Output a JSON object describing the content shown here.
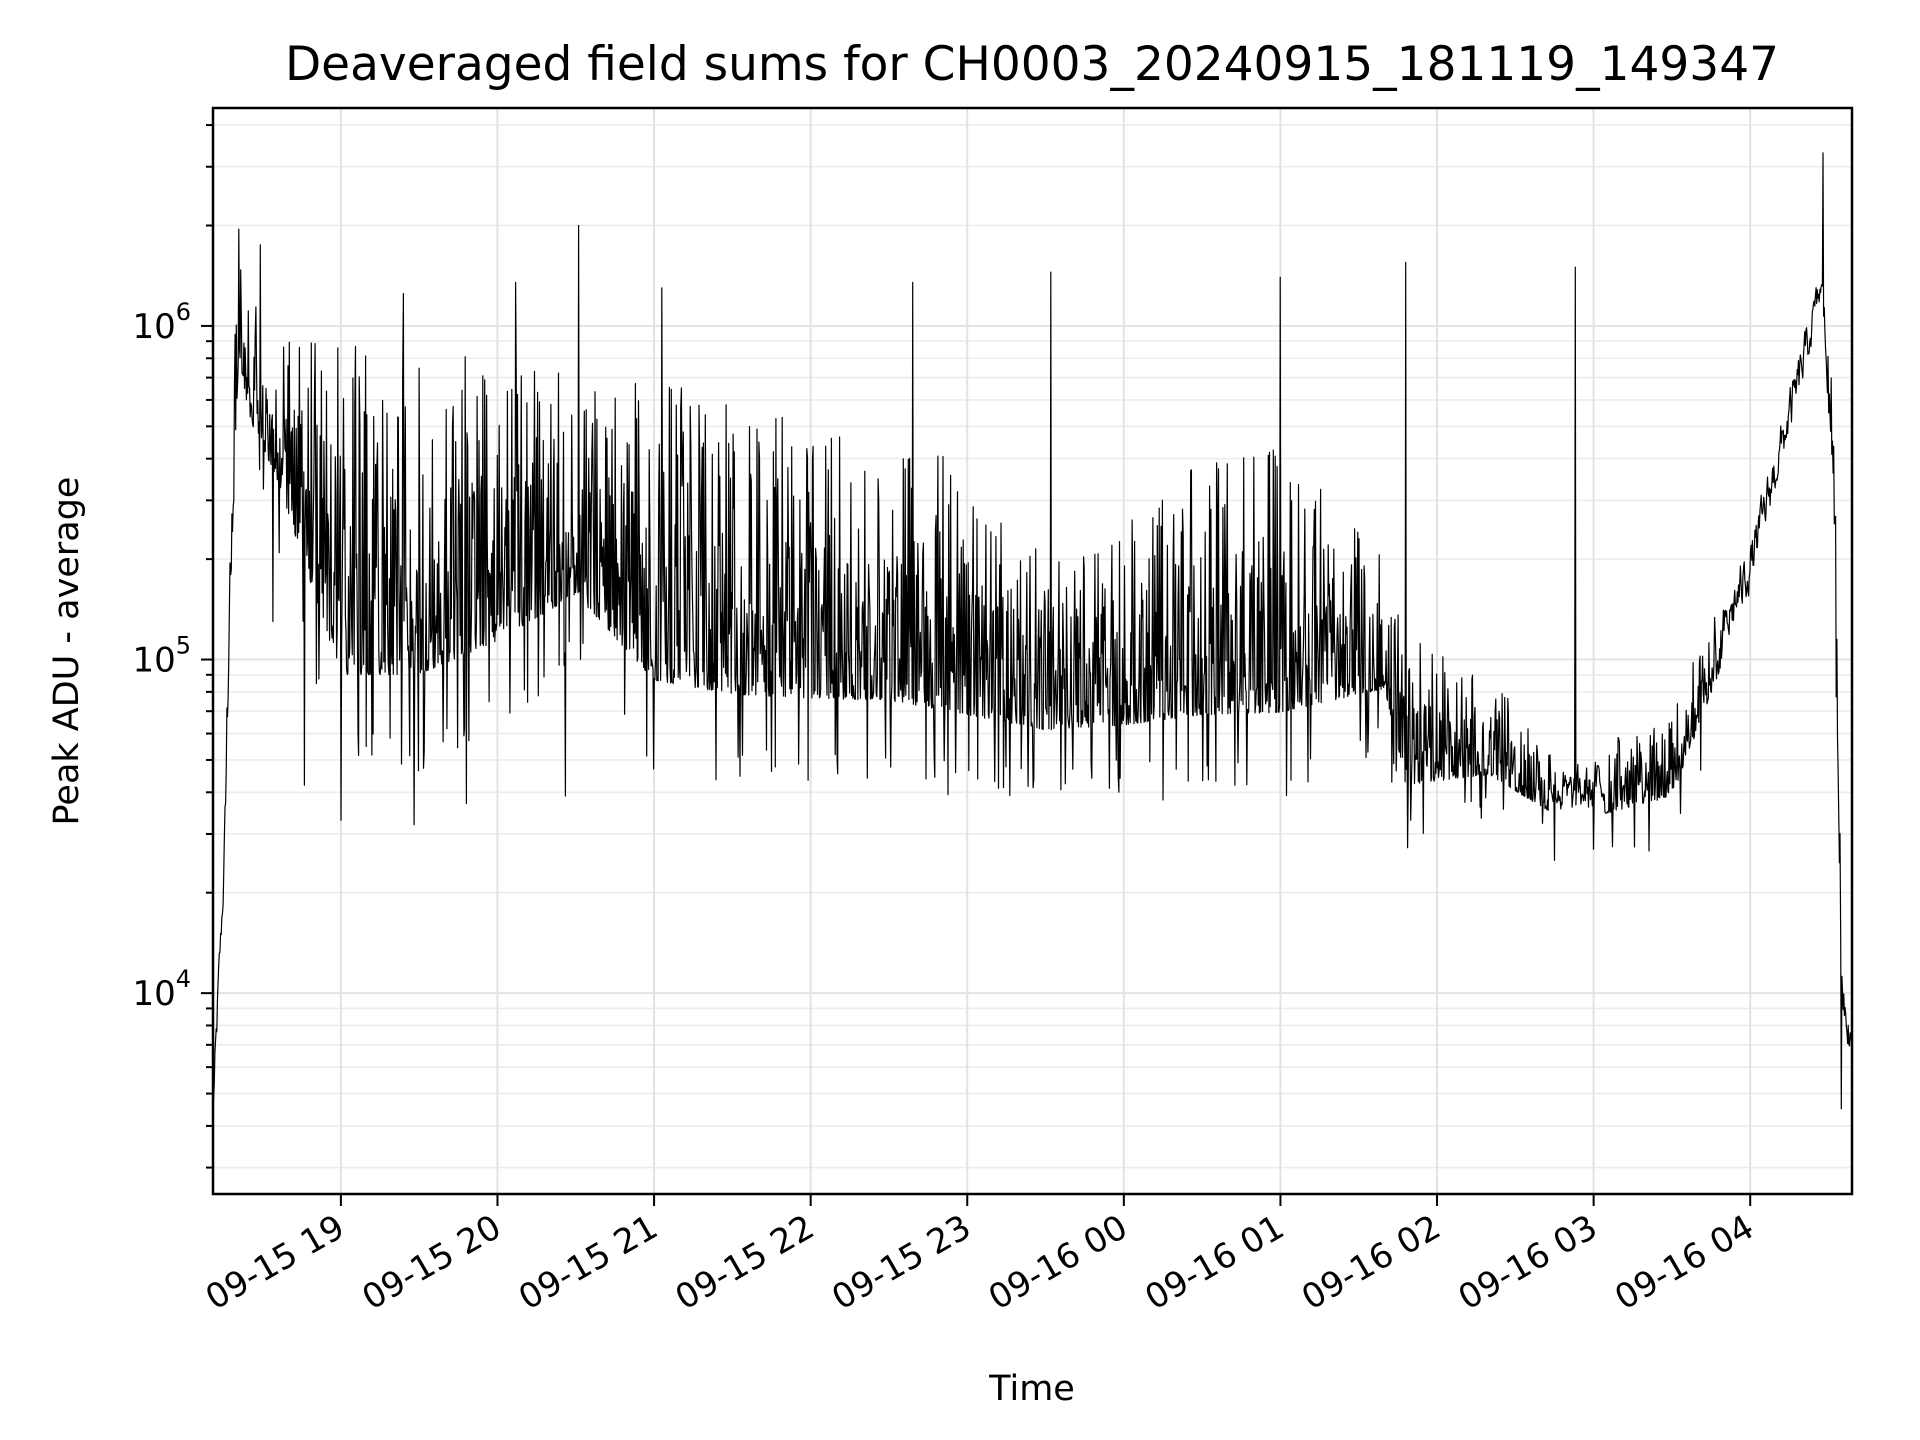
{
  "chart_data": {
    "type": "line",
    "title": "Deaveraged field sums for CH0003_20240915_181119_149347",
    "xlabel": "Time",
    "ylabel": "Peak ADU - average",
    "x_axis": {
      "type": "datetime",
      "range": [
        "2024-09-15 18:11",
        "2024-09-16 04:39"
      ],
      "ticks": [
        {
          "t": "2024-09-15 19:00",
          "label": "09-15 19"
        },
        {
          "t": "2024-09-15 20:00",
          "label": "09-15 20"
        },
        {
          "t": "2024-09-15 21:00",
          "label": "09-15 21"
        },
        {
          "t": "2024-09-15 22:00",
          "label": "09-15 22"
        },
        {
          "t": "2024-09-15 23:00",
          "label": "09-15 23"
        },
        {
          "t": "2024-09-16 00:00",
          "label": "09-16 00"
        },
        {
          "t": "2024-09-16 01:00",
          "label": "09-16 01"
        },
        {
          "t": "2024-09-16 02:00",
          "label": "09-16 02"
        },
        {
          "t": "2024-09-16 03:00",
          "label": "09-16 03"
        },
        {
          "t": "2024-09-16 04:00",
          "label": "09-16 04"
        }
      ]
    },
    "y_axis": {
      "scale": "log",
      "range": [
        2500,
        4500000
      ],
      "ticks": [
        {
          "value": 10000,
          "base": "10",
          "exp": "4"
        },
        {
          "value": 100000,
          "base": "10",
          "exp": "5"
        },
        {
          "value": 1000000,
          "base": "10",
          "exp": "6"
        }
      ]
    },
    "grid": true,
    "color": "#000000",
    "series": [
      {
        "anchors": [
          {
            "t": "2024-09-15 18:11",
            "lower": 3500,
            "upper": 6000
          },
          {
            "t": "2024-09-15 18:13",
            "lower": 9000,
            "upper": 14000
          },
          {
            "t": "2024-09-15 18:15",
            "lower": 19000,
            "upper": 27000
          },
          {
            "t": "2024-09-15 18:18",
            "lower": 150000,
            "upper": 600000
          },
          {
            "t": "2024-09-15 18:21",
            "lower": 700000,
            "upper": 1900000
          },
          {
            "t": "2024-09-15 18:25",
            "lower": 450000,
            "upper": 1300000
          },
          {
            "t": "2024-09-15 18:35",
            "lower": 300000,
            "upper": 950000
          },
          {
            "t": "2024-09-15 19:00",
            "lower": 60000,
            "upper": 900000
          },
          {
            "t": "2024-09-15 19:30",
            "lower": 60000,
            "upper": 900000
          },
          {
            "t": "2024-09-15 20:00",
            "lower": 80000,
            "upper": 850000
          },
          {
            "t": "2024-09-15 20:30",
            "lower": 120000,
            "upper": 700000
          },
          {
            "t": "2024-09-15 21:00",
            "lower": 60000,
            "upper": 700000
          },
          {
            "t": "2024-09-15 21:30",
            "lower": 55000,
            "upper": 600000
          },
          {
            "t": "2024-09-15 22:00",
            "lower": 55000,
            "upper": 500000
          },
          {
            "t": "2024-09-15 22:30",
            "lower": 55000,
            "upper": 450000
          },
          {
            "t": "2024-09-15 23:00",
            "lower": 50000,
            "upper": 400000
          },
          {
            "t": "2024-09-15 23:30",
            "lower": 50000,
            "upper": 200000
          },
          {
            "t": "2024-09-16 00:00",
            "lower": 50000,
            "upper": 250000
          },
          {
            "t": "2024-09-16 00:30",
            "lower": 50000,
            "upper": 400000
          },
          {
            "t": "2024-09-16 01:00",
            "lower": 50000,
            "upper": 450000
          },
          {
            "t": "2024-09-16 01:40",
            "lower": 70000,
            "upper": 200000
          },
          {
            "t": "2024-09-16 01:48",
            "lower": 35000,
            "upper": 120000
          },
          {
            "t": "2024-09-16 02:20",
            "lower": 40000,
            "upper": 90000
          },
          {
            "t": "2024-09-16 02:50",
            "lower": 30000,
            "upper": 50000
          },
          {
            "t": "2024-09-16 03:30",
            "lower": 35000,
            "upper": 70000
          },
          {
            "t": "2024-09-16 04:00",
            "lower": 150000,
            "upper": 250000
          },
          {
            "t": "2024-09-16 04:20",
            "lower": 600000,
            "upper": 1000000
          },
          {
            "t": "2024-09-16 04:27",
            "lower": 1100000,
            "upper": 1600000
          },
          {
            "t": "2024-09-16 04:32",
            "lower": 300000,
            "upper": 700000
          },
          {
            "t": "2024-09-16 04:35",
            "lower": 8000,
            "upper": 14000
          },
          {
            "t": "2024-09-16 04:39",
            "lower": 5500,
            "upper": 8500
          }
        ],
        "spikes": [
          {
            "t": "2024-09-15 18:21",
            "value": 1950000
          },
          {
            "t": "2024-09-15 18:29",
            "value": 1750000
          },
          {
            "t": "2024-09-15 19:24",
            "value": 1250000
          },
          {
            "t": "2024-09-15 20:07",
            "value": 1350000
          },
          {
            "t": "2024-09-15 20:31",
            "value": 2000000
          },
          {
            "t": "2024-09-15 21:03",
            "value": 1300000
          },
          {
            "t": "2024-09-15 22:39",
            "value": 1350000
          },
          {
            "t": "2024-09-15 23:32",
            "value": 1450000
          },
          {
            "t": "2024-09-16 01:00",
            "value": 1400000
          },
          {
            "t": "2024-09-16 01:48",
            "value": 1550000
          },
          {
            "t": "2024-09-16 02:53",
            "value": 1500000
          },
          {
            "t": "2024-09-16 04:28",
            "value": 3300000
          },
          {
            "t": "2024-09-15 18:34",
            "value": 130000
          },
          {
            "t": "2024-09-15 18:46",
            "value": 42000
          },
          {
            "t": "2024-09-15 19:00",
            "value": 33000
          },
          {
            "t": "2024-09-15 19:28",
            "value": 32000
          },
          {
            "t": "2024-09-15 19:48",
            "value": 37000
          },
          {
            "t": "2024-09-15 20:26",
            "value": 39000
          },
          {
            "t": "2024-09-16 01:50",
            "value": 33000
          },
          {
            "t": "2024-09-16 02:45",
            "value": 25000
          },
          {
            "t": "2024-09-16 03:00",
            "value": 27000
          },
          {
            "t": "2024-09-16 04:35",
            "value": 4500
          }
        ]
      }
    ]
  }
}
